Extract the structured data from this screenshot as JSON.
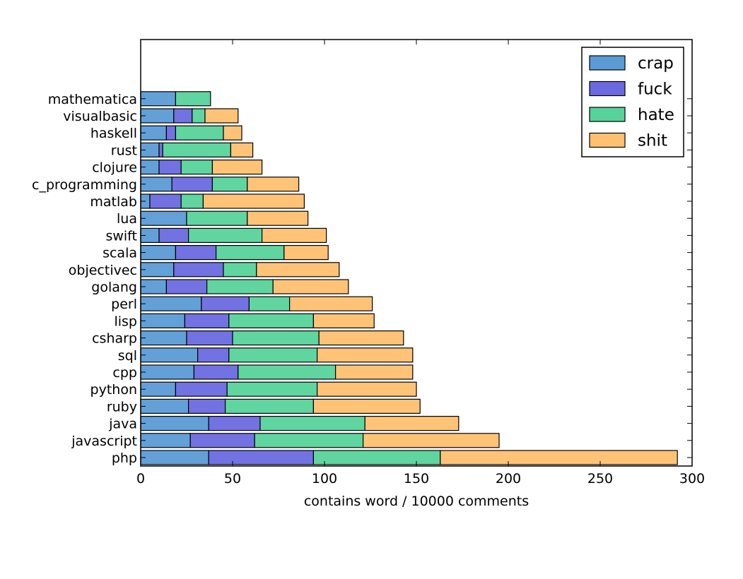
{
  "chart_data": {
    "type": "bar",
    "orientation": "horizontal",
    "stacked": true,
    "categories": [
      "php",
      "javascript",
      "java",
      "ruby",
      "python",
      "cpp",
      "sql",
      "csharp",
      "lisp",
      "perl",
      "golang",
      "objectivec",
      "scala",
      "swift",
      "lua",
      "matlab",
      "c_programming",
      "clojure",
      "rust",
      "haskell",
      "visualbasic",
      "mathematica"
    ],
    "series": [
      {
        "name": "crap",
        "color": "#5B9BD5",
        "values": [
          37,
          27,
          37,
          26,
          19,
          29,
          31,
          25,
          24,
          33,
          14,
          18,
          19,
          10,
          25,
          5,
          17,
          10,
          10,
          14,
          18,
          19
        ]
      },
      {
        "name": "fuck",
        "color": "#6A6AE0",
        "values": [
          57,
          35,
          28,
          20,
          28,
          24,
          17,
          25,
          24,
          26,
          22,
          27,
          22,
          16,
          0,
          17,
          22,
          12,
          2,
          5,
          10,
          0
        ]
      },
      {
        "name": "hate",
        "color": "#57D39A",
        "values": [
          69,
          59,
          57,
          48,
          49,
          53,
          48,
          47,
          46,
          22,
          36,
          18,
          37,
          40,
          33,
          12,
          19,
          17,
          37,
          26,
          7,
          19
        ]
      },
      {
        "name": "shit",
        "color": "#FFC070",
        "values": [
          129,
          74,
          51,
          58,
          54,
          42,
          52,
          46,
          33,
          45,
          41,
          45,
          24,
          35,
          33,
          55,
          28,
          27,
          12,
          10,
          18,
          0
        ]
      }
    ],
    "xlabel": "contains word / 10000 comments",
    "ylabel": "",
    "xlim": [
      0,
      300
    ],
    "xticks": [
      "0",
      "50",
      "100",
      "150",
      "200",
      "250",
      "300"
    ],
    "grid": false,
    "legend_position": "top-right"
  }
}
